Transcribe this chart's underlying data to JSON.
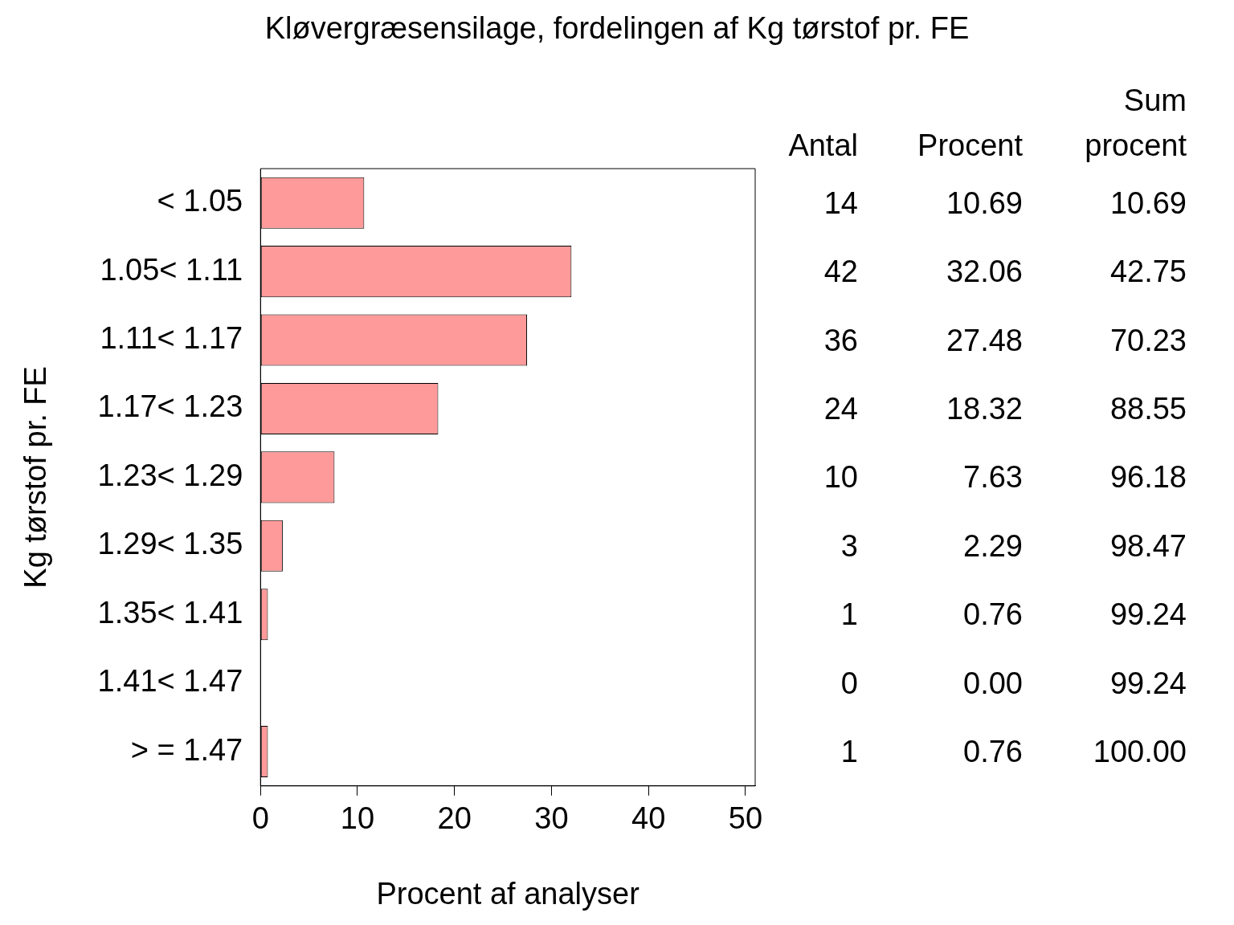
{
  "chart_data": {
    "type": "bar",
    "orientation": "horizontal",
    "title": "Kløvergræsensilage, fordelingen af Kg tørstof pr. FE",
    "xlabel": "Procent af analyser",
    "ylabel": "Kg tørstof pr. FE",
    "categories": [
      "< 1.05",
      "1.05< 1.11",
      "1.11< 1.17",
      "1.17< 1.23",
      "1.23< 1.29",
      "1.29< 1.35",
      "1.35< 1.41",
      "1.41< 1.47",
      "> = 1.47"
    ],
    "values": [
      10.69,
      32.06,
      27.48,
      18.32,
      7.63,
      2.29,
      0.76,
      0.0,
      0.76
    ],
    "value_labels": [
      "10.69",
      "32.06",
      "27.48",
      "18.32",
      "7.63",
      "2.29",
      "0.76",
      "0.00",
      "0.76"
    ],
    "color": "#ff9a9a",
    "xlim": [
      0,
      51
    ],
    "xticks": [
      0,
      10,
      20,
      30,
      40,
      50
    ],
    "grid": false,
    "legend": false,
    "annotations": [
      "Antal",
      "Procent",
      "Sum procent",
      "14",
      "42",
      "36",
      "24",
      "10",
      "3",
      "1",
      "0",
      "1",
      "10.69",
      "42.75",
      "70.23",
      "88.55",
      "96.18",
      "98.47",
      "99.24",
      "99.24",
      "100.00"
    ]
  }
}
